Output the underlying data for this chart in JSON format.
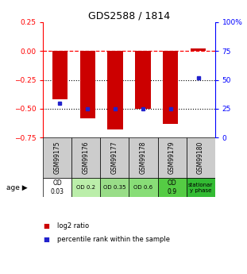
{
  "title": "GDS2588 / 1814",
  "samples": [
    "GSM99175",
    "GSM99176",
    "GSM99177",
    "GSM99178",
    "GSM99179",
    "GSM99180"
  ],
  "log2_ratios": [
    -0.42,
    -0.58,
    -0.68,
    -0.5,
    -0.63,
    0.02
  ],
  "percentile_ranks": [
    30,
    25,
    25,
    25,
    25,
    52
  ],
  "bar_color": "#cc0000",
  "dot_color": "#2222cc",
  "ylim_left": [
    -0.75,
    0.25
  ],
  "ylim_right": [
    0,
    100
  ],
  "yticks_left": [
    0.25,
    0,
    -0.25,
    -0.5,
    -0.75
  ],
  "yticks_right": [
    100,
    75,
    50,
    25,
    0
  ],
  "hline_y": 0,
  "dotted_lines": [
    -0.25,
    -0.5
  ],
  "age_labels": [
    "OD\n0.03",
    "OD 0.2",
    "OD 0.35",
    "OD 0.6",
    "OD\n0.9",
    "stationar\ny phase"
  ],
  "age_bg_colors": [
    "#ffffff",
    "#bbeeaa",
    "#99dd88",
    "#88dd77",
    "#55cc44",
    "#33bb33"
  ],
  "sample_bg_color": "#cccccc",
  "legend_red_label": "log2 ratio",
  "legend_blue_label": "percentile rank within the sample"
}
